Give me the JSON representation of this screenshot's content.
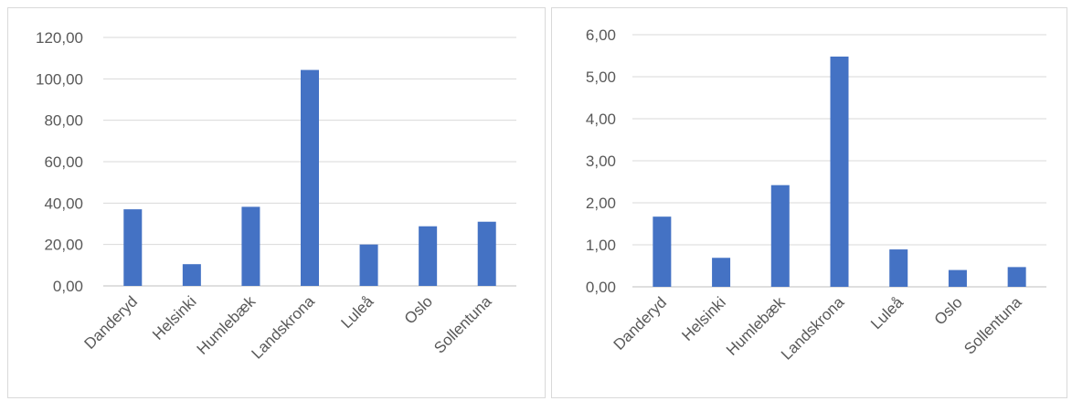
{
  "colors": {
    "bar": "#4472c4",
    "grid": "#d9d9d9",
    "text": "#595959"
  },
  "chart_data": [
    {
      "type": "bar",
      "categories": [
        "Danderyd",
        "Helsinki",
        "Humlebæk",
        "Landskrona",
        "Luleå",
        "Oslo",
        "Sollentuna"
      ],
      "values": [
        37.0,
        10.5,
        38.2,
        104.3,
        20.0,
        28.8,
        31.0
      ],
      "ylim": [
        0,
        120
      ],
      "yticks": [
        "0,00",
        "20,00",
        "40,00",
        "60,00",
        "80,00",
        "100,00",
        "120,00"
      ],
      "grid": true,
      "title": "",
      "xlabel": "",
      "ylabel": ""
    },
    {
      "type": "bar",
      "categories": [
        "Danderyd",
        "Helsinki",
        "Humlebæk",
        "Landskrona",
        "Luleå",
        "Oslo",
        "Sollentuna"
      ],
      "values": [
        1.67,
        0.69,
        2.42,
        5.48,
        0.89,
        0.4,
        0.47
      ],
      "ylim": [
        0,
        6
      ],
      "yticks": [
        "0,00",
        "1,00",
        "2,00",
        "3,00",
        "4,00",
        "5,00",
        "6,00"
      ],
      "grid": true,
      "title": "",
      "xlabel": "",
      "ylabel": ""
    }
  ]
}
